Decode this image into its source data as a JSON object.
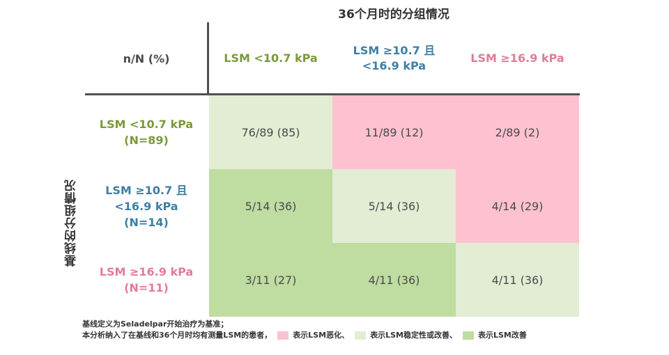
{
  "chart_data": {
    "type": "table",
    "title": "36个月时的分组情况",
    "ylabel": "基线的分组情况",
    "corner_label": "n/N (%)",
    "colors": {
      "green_text": "#7a9a3a",
      "blue_text": "#3e7fa3",
      "pink_text": "#e07d95",
      "worsen": "#fdc1cf",
      "stable": "#e2edd4",
      "improve": "#bfdca1"
    },
    "columns": [
      {
        "label": "LSM <10.7 kPa",
        "color": "green"
      },
      {
        "label": "LSM ≥10.7 且\n<16.9 kPa",
        "color": "blue"
      },
      {
        "label": "LSM ≥16.9 kPa",
        "color": "pink"
      }
    ],
    "rows": [
      {
        "label": "LSM <10.7 kPa\n(N=89)",
        "color": "green",
        "cells": [
          {
            "text": "76/89 (85)",
            "status": "stable",
            "n": 76,
            "N": 89,
            "pct": 85
          },
          {
            "text": "11/89 (12)",
            "status": "worsen",
            "n": 11,
            "N": 89,
            "pct": 12
          },
          {
            "text": "2/89 (2)",
            "status": "worsen",
            "n": 2,
            "N": 89,
            "pct": 2
          }
        ]
      },
      {
        "label": "LSM ≥10.7 且\n<16.9 kPa\n(N=14)",
        "color": "blue",
        "cells": [
          {
            "text": "5/14 (36)",
            "status": "improve",
            "n": 5,
            "N": 14,
            "pct": 36
          },
          {
            "text": "5/14 (36)",
            "status": "stable",
            "n": 5,
            "N": 14,
            "pct": 36
          },
          {
            "text": "4/14 (29)",
            "status": "worsen",
            "n": 4,
            "N": 14,
            "pct": 29
          }
        ]
      },
      {
        "label": "LSM ≥16.9 kPa\n(N=11)",
        "color": "pink",
        "cells": [
          {
            "text": "3/11 (27)",
            "status": "improve",
            "n": 3,
            "N": 11,
            "pct": 27
          },
          {
            "text": "4/11 (36)",
            "status": "improve",
            "n": 4,
            "N": 11,
            "pct": 36
          },
          {
            "text": "4/11 (36)",
            "status": "stable",
            "n": 4,
            "N": 11,
            "pct": 36
          }
        ]
      }
    ]
  },
  "footnote": {
    "line1": "基线定义为Seladelpar开始治疗为基准；",
    "line2": "本分析纳入了在基线和36个月时均有测量LSM的患者，",
    "legend": [
      {
        "status": "worsen",
        "label": "表示LSM恶化、"
      },
      {
        "status": "stable",
        "label": "表示LSM稳定性或改善、"
      },
      {
        "status": "improve",
        "label": "表示LSM改善"
      }
    ]
  }
}
